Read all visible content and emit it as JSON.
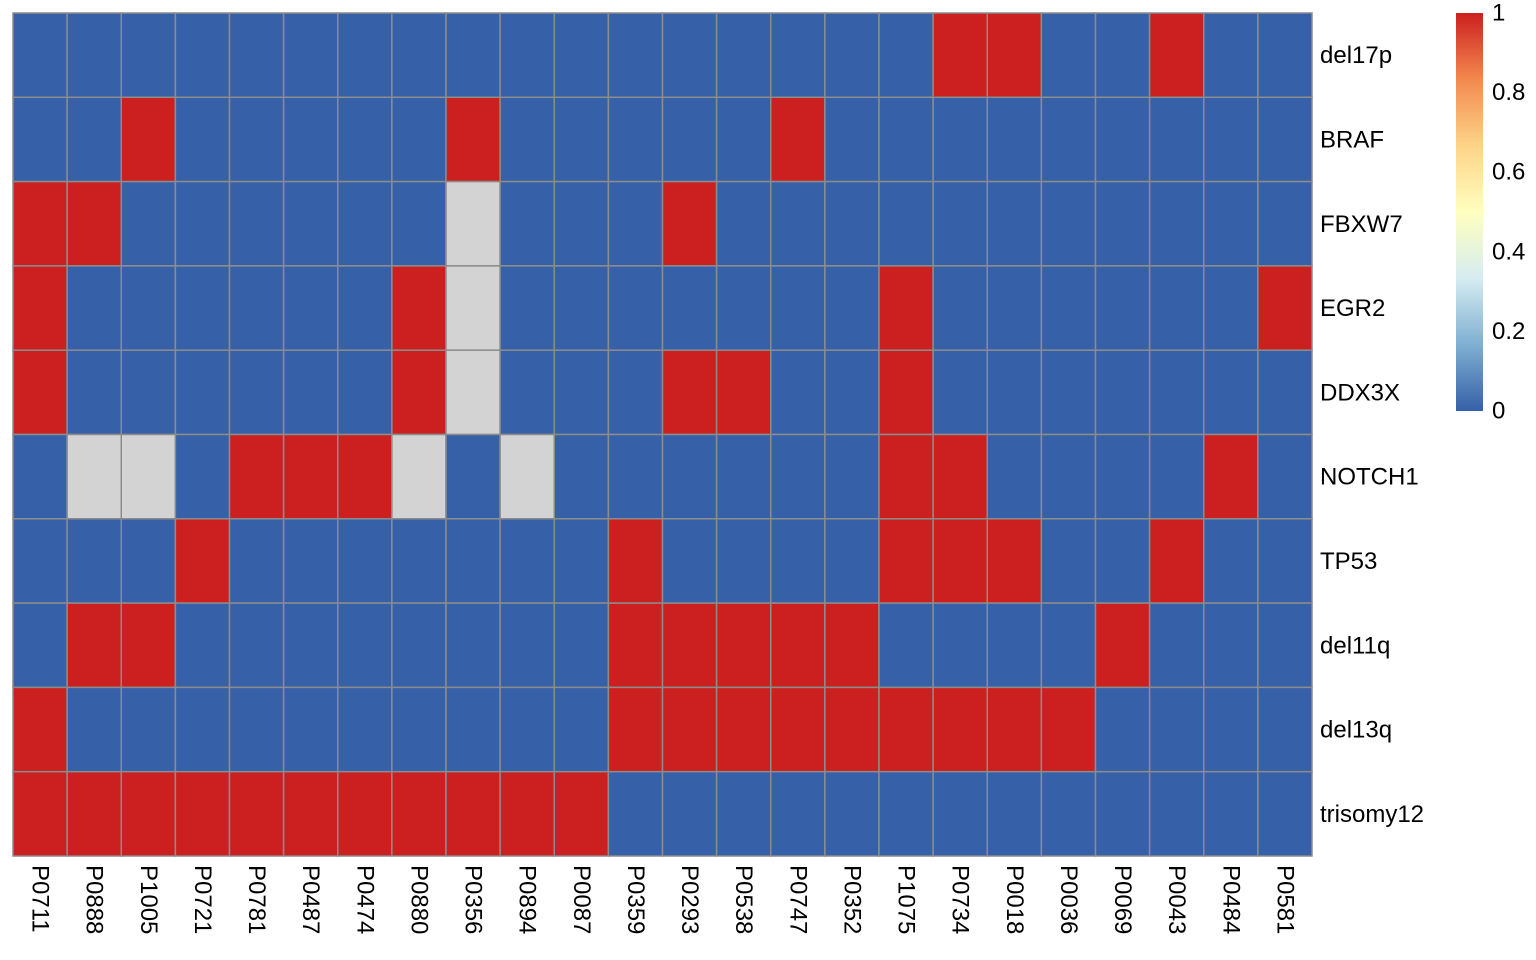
{
  "colors": {
    "present": "#CC1F1F",
    "absent": "#3660A8",
    "missing": "#D3D3D3",
    "cell_border": "#8C8C8C",
    "legend_scale": [
      "#3660A8",
      "#7FAFD2",
      "#D6ECF1",
      "#FFFFBF",
      "#FDD487",
      "#F3894F",
      "#CC1F1F"
    ]
  },
  "chart_data": {
    "type": "heatmap",
    "rows": [
      "del17p",
      "BRAF",
      "FBXW7",
      "EGR2",
      "DDX3X",
      "NOTCH1",
      "TP53",
      "del11q",
      "del13q",
      "trisomy12"
    ],
    "columns": [
      "P0711",
      "P0888",
      "P1005",
      "P0721",
      "P0781",
      "P0487",
      "P0474",
      "P0880",
      "P0356",
      "P0894",
      "P0087",
      "P0359",
      "P0293",
      "P0538",
      "P0747",
      "P0352",
      "P1075",
      "P0734",
      "P0018",
      "P0036",
      "P0069",
      "P0043",
      "P0484",
      "P0581"
    ],
    "values": [
      [
        0,
        0,
        0,
        0,
        0,
        0,
        0,
        0,
        0,
        0,
        0,
        0,
        0,
        0,
        0,
        0,
        0,
        1,
        1,
        0,
        0,
        1,
        0,
        0
      ],
      [
        0,
        0,
        1,
        0,
        0,
        0,
        0,
        0,
        1,
        0,
        0,
        0,
        0,
        0,
        1,
        0,
        0,
        0,
        0,
        0,
        0,
        0,
        0,
        0
      ],
      [
        1,
        1,
        0,
        0,
        0,
        0,
        0,
        0,
        null,
        0,
        0,
        0,
        1,
        0,
        0,
        0,
        0,
        0,
        0,
        0,
        0,
        0,
        0,
        0
      ],
      [
        1,
        0,
        0,
        0,
        0,
        0,
        0,
        1,
        null,
        0,
        0,
        0,
        0,
        0,
        0,
        0,
        1,
        0,
        0,
        0,
        0,
        0,
        0,
        1
      ],
      [
        1,
        0,
        0,
        0,
        0,
        0,
        0,
        1,
        null,
        0,
        0,
        0,
        1,
        1,
        0,
        0,
        1,
        0,
        0,
        0,
        0,
        0,
        0,
        0
      ],
      [
        0,
        null,
        null,
        0,
        1,
        1,
        1,
        null,
        0,
        null,
        0,
        0,
        0,
        0,
        0,
        0,
        1,
        1,
        0,
        0,
        0,
        0,
        1,
        0
      ],
      [
        0,
        0,
        0,
        1,
        0,
        0,
        0,
        0,
        0,
        0,
        0,
        1,
        0,
        0,
        0,
        0,
        1,
        1,
        1,
        0,
        0,
        1,
        0,
        0
      ],
      [
        0,
        1,
        1,
        0,
        0,
        0,
        0,
        0,
        0,
        0,
        0,
        1,
        1,
        1,
        1,
        1,
        0,
        0,
        0,
        0,
        1,
        0,
        0,
        0
      ],
      [
        1,
        0,
        0,
        0,
        0,
        0,
        0,
        0,
        0,
        0,
        0,
        1,
        1,
        1,
        1,
        1,
        1,
        1,
        1,
        1,
        0,
        0,
        0,
        0
      ],
      [
        1,
        1,
        1,
        1,
        1,
        1,
        1,
        1,
        1,
        1,
        1,
        0,
        0,
        0,
        0,
        0,
        0,
        0,
        0,
        0,
        0,
        0,
        0,
        0
      ]
    ],
    "color_scale": {
      "min": 0,
      "max": 1,
      "ticks": [
        "1",
        "0.8",
        "0.6",
        "0.4",
        "0.2",
        "0"
      ]
    },
    "legend_position": "top-right",
    "grid": true
  }
}
